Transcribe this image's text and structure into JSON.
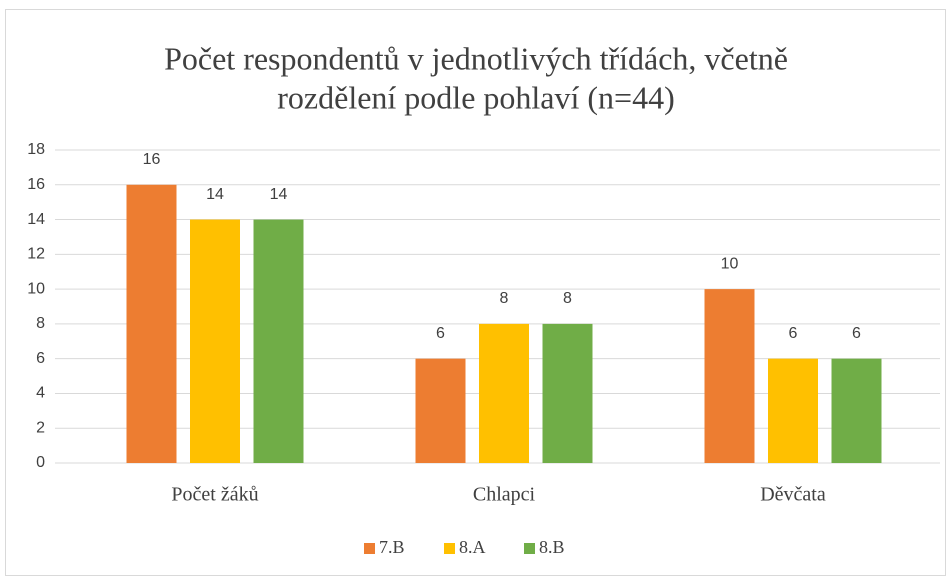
{
  "chart_data": {
    "type": "bar",
    "title": [
      "Počet respondentů v jednotlivých třídách, včetně",
      "rozdělení podle pohlaví (n=44)"
    ],
    "categories": [
      "Počet žáků",
      "Chlapci",
      "Děvčata"
    ],
    "series": [
      {
        "name": "7.B",
        "color": "#ed7d31",
        "values": [
          16,
          6,
          10
        ]
      },
      {
        "name": "8.A",
        "color": "#ffc000",
        "values": [
          14,
          8,
          6
        ]
      },
      {
        "name": "8.B",
        "color": "#70ad47",
        "values": [
          14,
          8,
          6
        ]
      }
    ],
    "ylim": [
      0,
      18
    ],
    "yticks": [
      0,
      2,
      4,
      6,
      8,
      10,
      12,
      14,
      16,
      18
    ],
    "grid": true,
    "legend": "bottom"
  }
}
